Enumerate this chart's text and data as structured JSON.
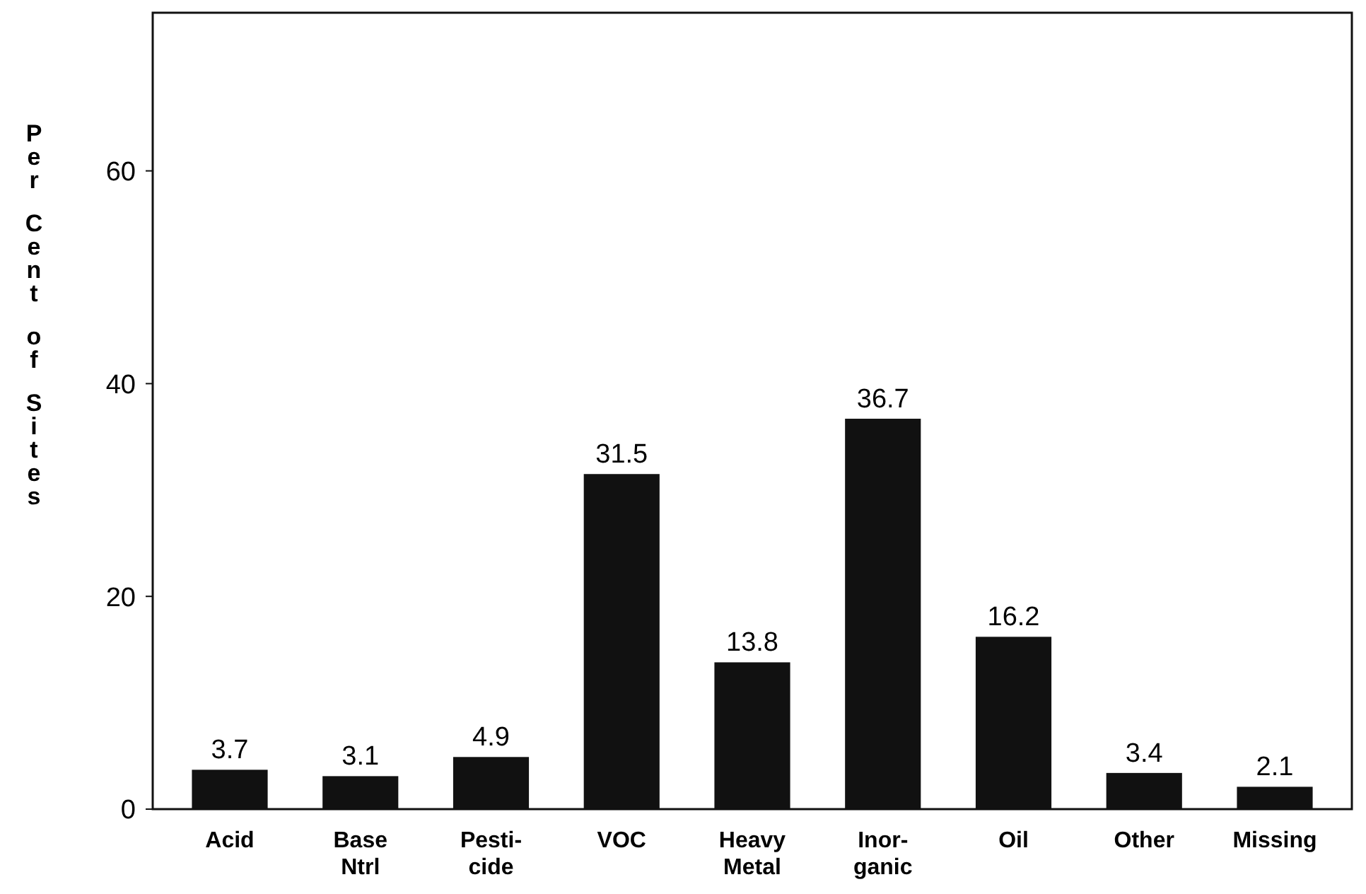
{
  "chart_data": {
    "type": "bar",
    "ylabel": "Per Cent of Sites",
    "categories": [
      "Acid",
      "Base\nNtrl",
      "Pesti-\ncide",
      "VOC",
      "Heavy\nMetal",
      "Inor-\nganic",
      "Oil",
      "Other",
      "Missing"
    ],
    "values": [
      3.7,
      3.1,
      4.9,
      31.5,
      13.8,
      36.7,
      16.2,
      3.4,
      2.1
    ],
    "color": "#111111",
    "ylim": [
      0,
      75
    ],
    "yticks": [
      0,
      20,
      40,
      60
    ],
    "grid": false,
    "data_labels": true
  }
}
